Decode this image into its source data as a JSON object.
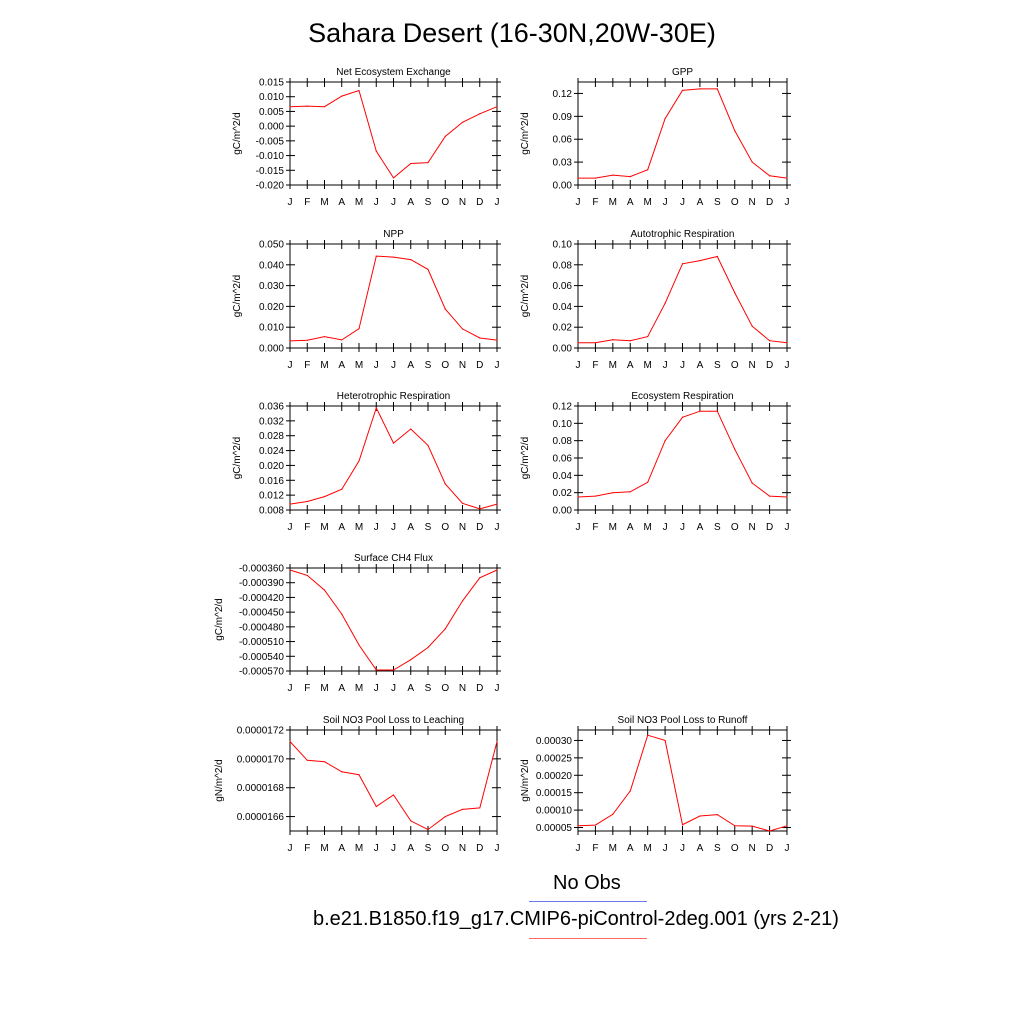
{
  "title": "Sahara Desert (16-30N,20W-30E)",
  "legend": {
    "entries": [
      {
        "label": "No Obs",
        "color": "#6a7ae8"
      },
      {
        "label": "b.e21.B1850.f19_g17.CMIP6-piControl-2deg.001 (yrs 2-21)",
        "color": "#ff0000"
      }
    ]
  },
  "chart_data": [
    {
      "type": "line",
      "title": "Net Ecosystem Exchange",
      "ylabel": "gC/m^2/d",
      "categories": [
        "J",
        "F",
        "M",
        "A",
        "M",
        "J",
        "J",
        "A",
        "S",
        "O",
        "N",
        "D",
        "J"
      ],
      "ylim": [
        -0.02,
        0.015
      ],
      "yticks": [
        0.015,
        0.01,
        0.005,
        0.0,
        -0.005,
        -0.01,
        -0.015,
        -0.02
      ],
      "ytick_labels": [
        "0.015",
        "0.010",
        "0.005",
        "0.000",
        "-0.005",
        "-0.010",
        "-0.015",
        "-0.020"
      ],
      "series": [
        {
          "color": "#ff0000",
          "values": [
            0.0066,
            0.0068,
            0.0066,
            0.0102,
            0.0121,
            -0.0085,
            -0.0176,
            -0.0127,
            -0.0124,
            -0.0035,
            0.0013,
            0.0042,
            0.0066
          ]
        }
      ]
    },
    {
      "type": "line",
      "title": "GPP",
      "ylabel": "gC/m^2/d",
      "categories": [
        "J",
        "F",
        "M",
        "A",
        "M",
        "J",
        "J",
        "A",
        "S",
        "O",
        "N",
        "D",
        "J"
      ],
      "ylim": [
        0,
        0.135
      ],
      "yticks": [
        0.0,
        0.03,
        0.06,
        0.09,
        0.12
      ],
      "ytick_labels": [
        "0.00",
        "0.03",
        "0.06",
        "0.09",
        "0.12"
      ],
      "series": [
        {
          "color": "#ff0000",
          "values": [
            0.009,
            0.009,
            0.013,
            0.011,
            0.02,
            0.087,
            0.124,
            0.126,
            0.126,
            0.071,
            0.03,
            0.012,
            0.009
          ]
        }
      ]
    },
    {
      "type": "line",
      "title": "NPP",
      "ylabel": "gC/m^2/d",
      "categories": [
        "J",
        "F",
        "M",
        "A",
        "M",
        "J",
        "J",
        "A",
        "S",
        "O",
        "N",
        "D",
        "J"
      ],
      "ylim": [
        0,
        0.05
      ],
      "yticks": [
        0.0,
        0.01,
        0.02,
        0.03,
        0.04,
        0.05
      ],
      "ytick_labels": [
        "0.000",
        "0.010",
        "0.020",
        "0.030",
        "0.040",
        "0.050"
      ],
      "series": [
        {
          "color": "#ff0000",
          "values": [
            0.0034,
            0.0037,
            0.0055,
            0.0039,
            0.0093,
            0.0442,
            0.0437,
            0.0425,
            0.0378,
            0.0187,
            0.0092,
            0.0048,
            0.0038
          ]
        }
      ]
    },
    {
      "type": "line",
      "title": "Autotrophic Respiration",
      "ylabel": "gC/m^2/d",
      "categories": [
        "J",
        "F",
        "M",
        "A",
        "M",
        "J",
        "J",
        "A",
        "S",
        "O",
        "N",
        "D",
        "J"
      ],
      "ylim": [
        0,
        0.1
      ],
      "yticks": [
        0.0,
        0.02,
        0.04,
        0.06,
        0.08,
        0.1
      ],
      "ytick_labels": [
        "0.00",
        "0.02",
        "0.04",
        "0.06",
        "0.08",
        "0.10"
      ],
      "series": [
        {
          "color": "#ff0000",
          "values": [
            0.005,
            0.005,
            0.008,
            0.007,
            0.011,
            0.043,
            0.081,
            0.084,
            0.088,
            0.053,
            0.021,
            0.007,
            0.005
          ]
        }
      ]
    },
    {
      "type": "line",
      "title": "Heterotrophic Respiration",
      "ylabel": "gC/m^2/d",
      "categories": [
        "J",
        "F",
        "M",
        "A",
        "M",
        "J",
        "J",
        "A",
        "S",
        "O",
        "N",
        "D",
        "J"
      ],
      "ylim": [
        0.008,
        0.036
      ],
      "yticks": [
        0.008,
        0.012,
        0.016,
        0.02,
        0.024,
        0.028,
        0.032,
        0.036
      ],
      "ytick_labels": [
        "0.008",
        "0.012",
        "0.016",
        "0.020",
        "0.024",
        "0.028",
        "0.032",
        "0.036"
      ],
      "series": [
        {
          "color": "#ff0000",
          "values": [
            0.0096,
            0.0103,
            0.0116,
            0.0136,
            0.0212,
            0.0355,
            0.026,
            0.0298,
            0.0254,
            0.015,
            0.0098,
            0.0083,
            0.0096
          ]
        }
      ]
    },
    {
      "type": "line",
      "title": "Ecosystem Respiration",
      "ylabel": "gC/m^2/d",
      "categories": [
        "J",
        "F",
        "M",
        "A",
        "M",
        "J",
        "J",
        "A",
        "S",
        "O",
        "N",
        "D",
        "J"
      ],
      "ylim": [
        0,
        0.12
      ],
      "yticks": [
        0.0,
        0.02,
        0.04,
        0.06,
        0.08,
        0.1,
        0.12
      ],
      "ytick_labels": [
        "0.00",
        "0.02",
        "0.04",
        "0.06",
        "0.08",
        "0.10",
        "0.12"
      ],
      "series": [
        {
          "color": "#ff0000",
          "values": [
            0.015,
            0.016,
            0.02,
            0.021,
            0.032,
            0.08,
            0.107,
            0.114,
            0.114,
            0.07,
            0.031,
            0.016,
            0.015
          ]
        }
      ]
    },
    {
      "type": "line",
      "title": "Surface CH4 Flux",
      "ylabel": "gC/m^2/d",
      "categories": [
        "J",
        "F",
        "M",
        "A",
        "M",
        "J",
        "J",
        "A",
        "S",
        "O",
        "N",
        "D",
        "J"
      ],
      "ylim": [
        -0.00057,
        -0.00036
      ],
      "yticks": [
        -0.00036,
        -0.00039,
        -0.00042,
        -0.00045,
        -0.00048,
        -0.00051,
        -0.00054,
        -0.00057
      ],
      "ytick_labels": [
        "-0.000360",
        "-0.000390",
        "-0.000420",
        "-0.000450",
        "-0.000480",
        "-0.000510",
        "-0.000540",
        "-0.000570"
      ],
      "series": [
        {
          "color": "#ff0000",
          "values": [
            -0.000364,
            -0.000375,
            -0.000405,
            -0.000454,
            -0.000517,
            -0.000568,
            -0.000568,
            -0.000547,
            -0.000522,
            -0.000484,
            -0.000427,
            -0.00038,
            -0.000364
          ]
        }
      ]
    },
    {
      "type": "line",
      "title": "Soil NO3 Pool Loss to Leaching",
      "ylabel": "gN/m^2/d",
      "categories": [
        "J",
        "F",
        "M",
        "A",
        "M",
        "J",
        "J",
        "A",
        "S",
        "O",
        "N",
        "D",
        "J"
      ],
      "ylim": [
        1.65e-05,
        1.72e-05
      ],
      "yticks": [
        1.72e-05,
        1.7e-05,
        1.68e-05,
        1.66e-05
      ],
      "ytick_labels": [
        "0.0000172",
        "0.0000170",
        "0.0000168",
        "0.0000166"
      ],
      "series": [
        {
          "color": "#ff0000",
          "values": [
            1.712e-05,
            1.699e-05,
            1.698e-05,
            1.691e-05,
            1.689e-05,
            1.667e-05,
            1.675e-05,
            1.657e-05,
            1.651e-05,
            1.66e-05,
            1.665e-05,
            1.666e-05,
            1.712e-05
          ]
        }
      ]
    },
    {
      "type": "line",
      "title": "Soil NO3 Pool Loss to Runoff",
      "ylabel": "gN/m^2/d",
      "categories": [
        "J",
        "F",
        "M",
        "A",
        "M",
        "J",
        "J",
        "A",
        "S",
        "O",
        "N",
        "D",
        "J"
      ],
      "ylim": [
        4e-05,
        0.00033
      ],
      "yticks": [
        5e-05,
        0.0001,
        0.00015,
        0.0002,
        0.00025,
        0.0003
      ],
      "ytick_labels": [
        "0.00005",
        "0.00010",
        "0.00015",
        "0.00020",
        "0.00025",
        "0.00030"
      ],
      "series": [
        {
          "color": "#ff0000",
          "values": [
            5.5e-05,
            5.7e-05,
            8.8e-05,
            0.000155,
            0.000315,
            0.0003,
            5.8e-05,
            8.3e-05,
            8.7e-05,
            5.5e-05,
            5.4e-05,
            4e-05,
            5.5e-05
          ]
        }
      ]
    }
  ]
}
